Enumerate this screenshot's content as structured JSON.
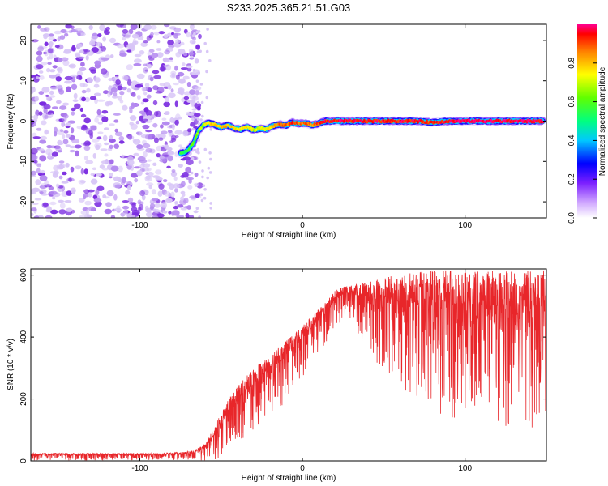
{
  "title": "S233.2025.365.21.51.G03",
  "colors": {
    "frame": "#000000",
    "snr_line": "#e8262a",
    "noise_purple": "#7a2be0",
    "noise_light": "#d8c6f7"
  },
  "chart_data": [
    {
      "type": "heatmap",
      "title": "S233.2025.365.21.51.G03",
      "xlabel": "Height of straight line (km)",
      "ylabel": "Frequency (Hz)",
      "xlim": [
        -167,
        150
      ],
      "ylim": [
        -24,
        24
      ],
      "xticks": [
        -100,
        0,
        100
      ],
      "yticks": [
        -20,
        -10,
        0,
        10,
        20
      ],
      "xtick_labels": [
        "-100",
        "0",
        "100"
      ],
      "ytick_labels": [
        "-20",
        "-10",
        "0",
        "10",
        "20"
      ],
      "colorbar": {
        "label": "Normalized spectral amplitude",
        "range": [
          0,
          1
        ],
        "ticks": [
          0.0,
          0.2,
          0.4,
          0.6,
          0.8
        ],
        "tick_labels": [
          "0.0",
          "0.2",
          "0.4",
          "0.6",
          "0.8"
        ]
      },
      "noise_region": {
        "x_range": [
          -167,
          -63
        ],
        "y_range": [
          -24,
          24
        ]
      },
      "ridge": {
        "x": [
          -75,
          -71,
          -67,
          -64,
          -61,
          -58,
          -54,
          -50,
          -46,
          -42,
          -38,
          -34,
          -30,
          -26,
          -22,
          -18,
          -14,
          -10,
          -6,
          -2,
          2,
          6,
          10,
          14,
          20,
          30,
          40,
          50,
          60,
          70,
          80,
          90,
          100,
          110,
          120,
          130,
          140,
          148
        ],
        "y": [
          -8,
          -7.5,
          -5.5,
          -2.5,
          -1,
          -0.5,
          -0.8,
          -1.5,
          -1,
          -1.8,
          -2,
          -1.5,
          -2.2,
          -1.8,
          -2,
          -1.2,
          -0.8,
          -1,
          -0.3,
          -0.6,
          -0.5,
          -1,
          -0.6,
          0,
          0,
          0,
          0,
          0,
          0,
          0,
          -0.3,
          0,
          0,
          0,
          0,
          0,
          0,
          0
        ],
        "amplitude": [
          0.55,
          0.55,
          0.6,
          0.65,
          0.7,
          0.75,
          0.8,
          0.78,
          0.8,
          0.75,
          0.72,
          0.78,
          0.7,
          0.72,
          0.75,
          0.8,
          0.85,
          0.88,
          0.9,
          0.85,
          0.88,
          0.85,
          0.88,
          0.95,
          0.95,
          0.95,
          0.95,
          0.95,
          0.95,
          0.95,
          0.9,
          0.95,
          0.98,
          0.98,
          0.98,
          0.98,
          0.98,
          0.95
        ]
      }
    },
    {
      "type": "line",
      "xlabel": "Height of straight line (km)",
      "ylabel": "SNR (10 * v/v)",
      "xlim": [
        -167,
        150
      ],
      "ylim": [
        0,
        620
      ],
      "xticks": [
        -100,
        0,
        100
      ],
      "yticks": [
        0,
        200,
        400,
        600
      ],
      "xtick_labels": [
        "-100",
        "0",
        "100"
      ],
      "ytick_labels": [
        "0",
        "200",
        "400",
        "600"
      ],
      "series": [
        {
          "name": "SNR",
          "x": [
            -167,
            -150,
            -130,
            -110,
            -90,
            -75,
            -67,
            -60,
            -55,
            -50,
            -45,
            -40,
            -35,
            -30,
            -25,
            -20,
            -15,
            -10,
            -5,
            0,
            5,
            10,
            15,
            20,
            25,
            30,
            35,
            40,
            50,
            60,
            70,
            80,
            90,
            100,
            110,
            120,
            130,
            140,
            150
          ],
          "mean": [
            20,
            20,
            20,
            20,
            20,
            22,
            25,
            40,
            80,
            120,
            170,
            200,
            230,
            255,
            275,
            295,
            320,
            345,
            370,
            400,
            430,
            460,
            490,
            520,
            540,
            540,
            535,
            530,
            525,
            520,
            520,
            515,
            510,
            510,
            505,
            505,
            505,
            500,
            505
          ],
          "spread": [
            12,
            12,
            12,
            12,
            12,
            14,
            18,
            35,
            55,
            70,
            80,
            90,
            95,
            100,
            100,
            100,
            100,
            95,
            90,
            85,
            80,
            75,
            70,
            65,
            60,
            60,
            90,
            110,
            150,
            180,
            200,
            220,
            240,
            240,
            240,
            240,
            250,
            250,
            250
          ]
        }
      ]
    }
  ]
}
